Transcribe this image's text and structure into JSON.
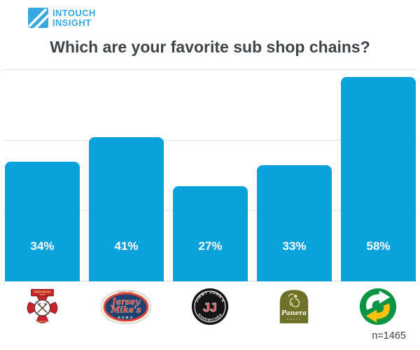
{
  "header": {
    "brand_line1": "INTOUCH",
    "brand_line2": "INSIGHT"
  },
  "title": "Which are your favorite sub shop chains?",
  "footnote": "n=1465",
  "colors": {
    "bar": "#0AA2DB",
    "brand_blue": "#36A9E1",
    "title_text": "#3F4448",
    "gridline": "#E2E2E2",
    "subway_green": "#0B9444",
    "subway_yellow": "#FFC20E",
    "panera_olive": "#6D7228",
    "jersey_navy": "#20406E",
    "jersey_red": "#DD4338",
    "firehouse_red": "#C4242E",
    "jimmy_black": "#151515"
  },
  "chart_data": {
    "type": "bar",
    "title": "Which are your favorite sub shop chains?",
    "categories": [
      "Firehouse Subs",
      "Jersey Mike's",
      "Jimmy John's",
      "Panera Bread",
      "Subway"
    ],
    "values": [
      34,
      41,
      27,
      33,
      58
    ],
    "value_labels": [
      "34%",
      "41%",
      "27%",
      "33%",
      "58%"
    ],
    "xlabel": "",
    "ylabel": "",
    "ylim": [
      0,
      60
    ],
    "gridline_step": 20,
    "grid": true,
    "legend_position": "none",
    "bar_color": "#0AA2DB",
    "sample_note": "n=1465"
  },
  "logos": {
    "firehouse": {
      "banner": "FIREHOUSE",
      "banner_sub": "SUBS",
      "bottom": "FOUNDATION"
    },
    "jersey_mikes": {
      "since": "SINCE 1956",
      "line1": "Jersey",
      "line2": "Mike's",
      "subs": "SUBS"
    },
    "jimmy_johns": {
      "top": "JIMMY JOHN'S",
      "bottom": "SANDWICHES",
      "monogram": "JJ"
    },
    "panera": {
      "name": "Panera",
      "sub": "BREAD"
    },
    "subway": {
      "name": ""
    }
  }
}
